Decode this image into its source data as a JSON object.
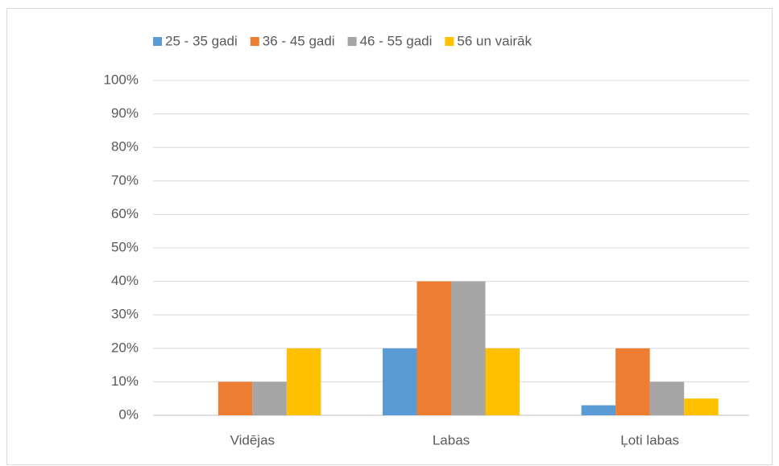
{
  "chart_data": {
    "type": "bar",
    "categories": [
      "Vidējas",
      "Labas",
      "Ļoti labas"
    ],
    "series": [
      {
        "name": "25 - 35 gadi",
        "color": "#5b9bd5",
        "values": [
          0,
          20,
          3
        ]
      },
      {
        "name": "36 - 45 gadi",
        "color": "#ed7d31",
        "values": [
          10,
          40,
          20
        ]
      },
      {
        "name": "46 - 55 gadi",
        "color": "#a5a5a5",
        "values": [
          10,
          40,
          10
        ]
      },
      {
        "name": "56 un vairāk",
        "color": "#ffc000",
        "values": [
          20,
          20,
          5
        ]
      }
    ],
    "ylim": [
      0,
      100
    ],
    "yticks": [
      {
        "value": 0,
        "label": "0%"
      },
      {
        "value": 10,
        "label": "10%"
      },
      {
        "value": 20,
        "label": "20%"
      },
      {
        "value": 30,
        "label": "30%"
      },
      {
        "value": 40,
        "label": "40%"
      },
      {
        "value": 50,
        "label": "50%"
      },
      {
        "value": 60,
        "label": "60%"
      },
      {
        "value": 70,
        "label": "70%"
      },
      {
        "value": 80,
        "label": "80%"
      },
      {
        "value": 90,
        "label": "90%"
      },
      {
        "value": 100,
        "label": "100%"
      }
    ],
    "grid": true,
    "legend": "top"
  }
}
